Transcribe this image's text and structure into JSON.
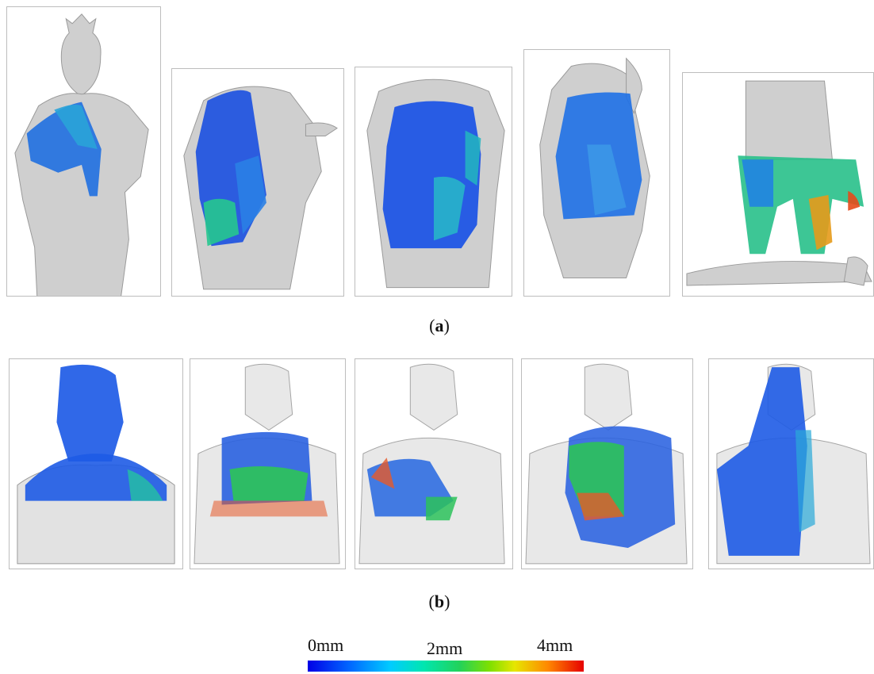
{
  "captions": {
    "a": "a",
    "b": "b"
  },
  "scale": {
    "min_label": "0mm",
    "mid_label": "2mm",
    "max_label": "4mm",
    "colors": [
      "#0000e6",
      "#0066ff",
      "#00ccff",
      "#22d25a",
      "#e6e600",
      "#ff8800",
      "#e60000"
    ]
  },
  "panels_a": [
    {
      "view": "head-and-shoulder"
    },
    {
      "view": "torso-left"
    },
    {
      "view": "torso-front"
    },
    {
      "view": "torso-side"
    },
    {
      "view": "legs-and-base"
    }
  ],
  "panels_b": [
    {
      "view": "head-and-chest"
    },
    {
      "view": "lap-center"
    },
    {
      "view": "lap-left"
    },
    {
      "view": "chest-center"
    },
    {
      "view": "right-side"
    }
  ]
}
